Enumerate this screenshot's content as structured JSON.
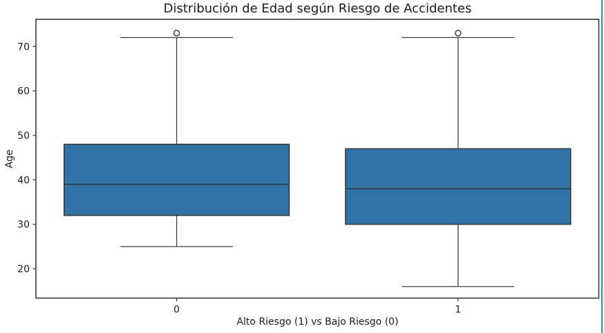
{
  "window": {
    "accent_border_color": "#0a9cb4",
    "background": "#ffffff"
  },
  "chart_data": {
    "type": "box",
    "title": "Distribución de Edad según Riesgo de Accidentes",
    "xlabel": "Alto Riesgo (1) vs Bajo Riesgo (0)",
    "ylabel": "Age",
    "categories": [
      "0",
      "1"
    ],
    "series": [
      {
        "name": "0",
        "whisker_low": 25,
        "q1": 32,
        "median": 39,
        "q3": 48,
        "whisker_high": 72,
        "outliers": [
          73
        ]
      },
      {
        "name": "1",
        "whisker_low": 16,
        "q1": 30,
        "median": 38,
        "q3": 47,
        "whisker_high": 72,
        "outliers": [
          73
        ]
      }
    ],
    "yticks": [
      "20",
      "30",
      "40",
      "50",
      "60",
      "70"
    ],
    "ylim": [
      13.4,
      76.1
    ],
    "grid": false,
    "legend": "none",
    "colors": {
      "box_fill": "#3173a6",
      "box_edge": "#343434",
      "whisker": "#3c3c3c",
      "frame": "#3c3c3c",
      "text": "#1a1a1a",
      "outlier_fill": "#ffffff"
    }
  }
}
